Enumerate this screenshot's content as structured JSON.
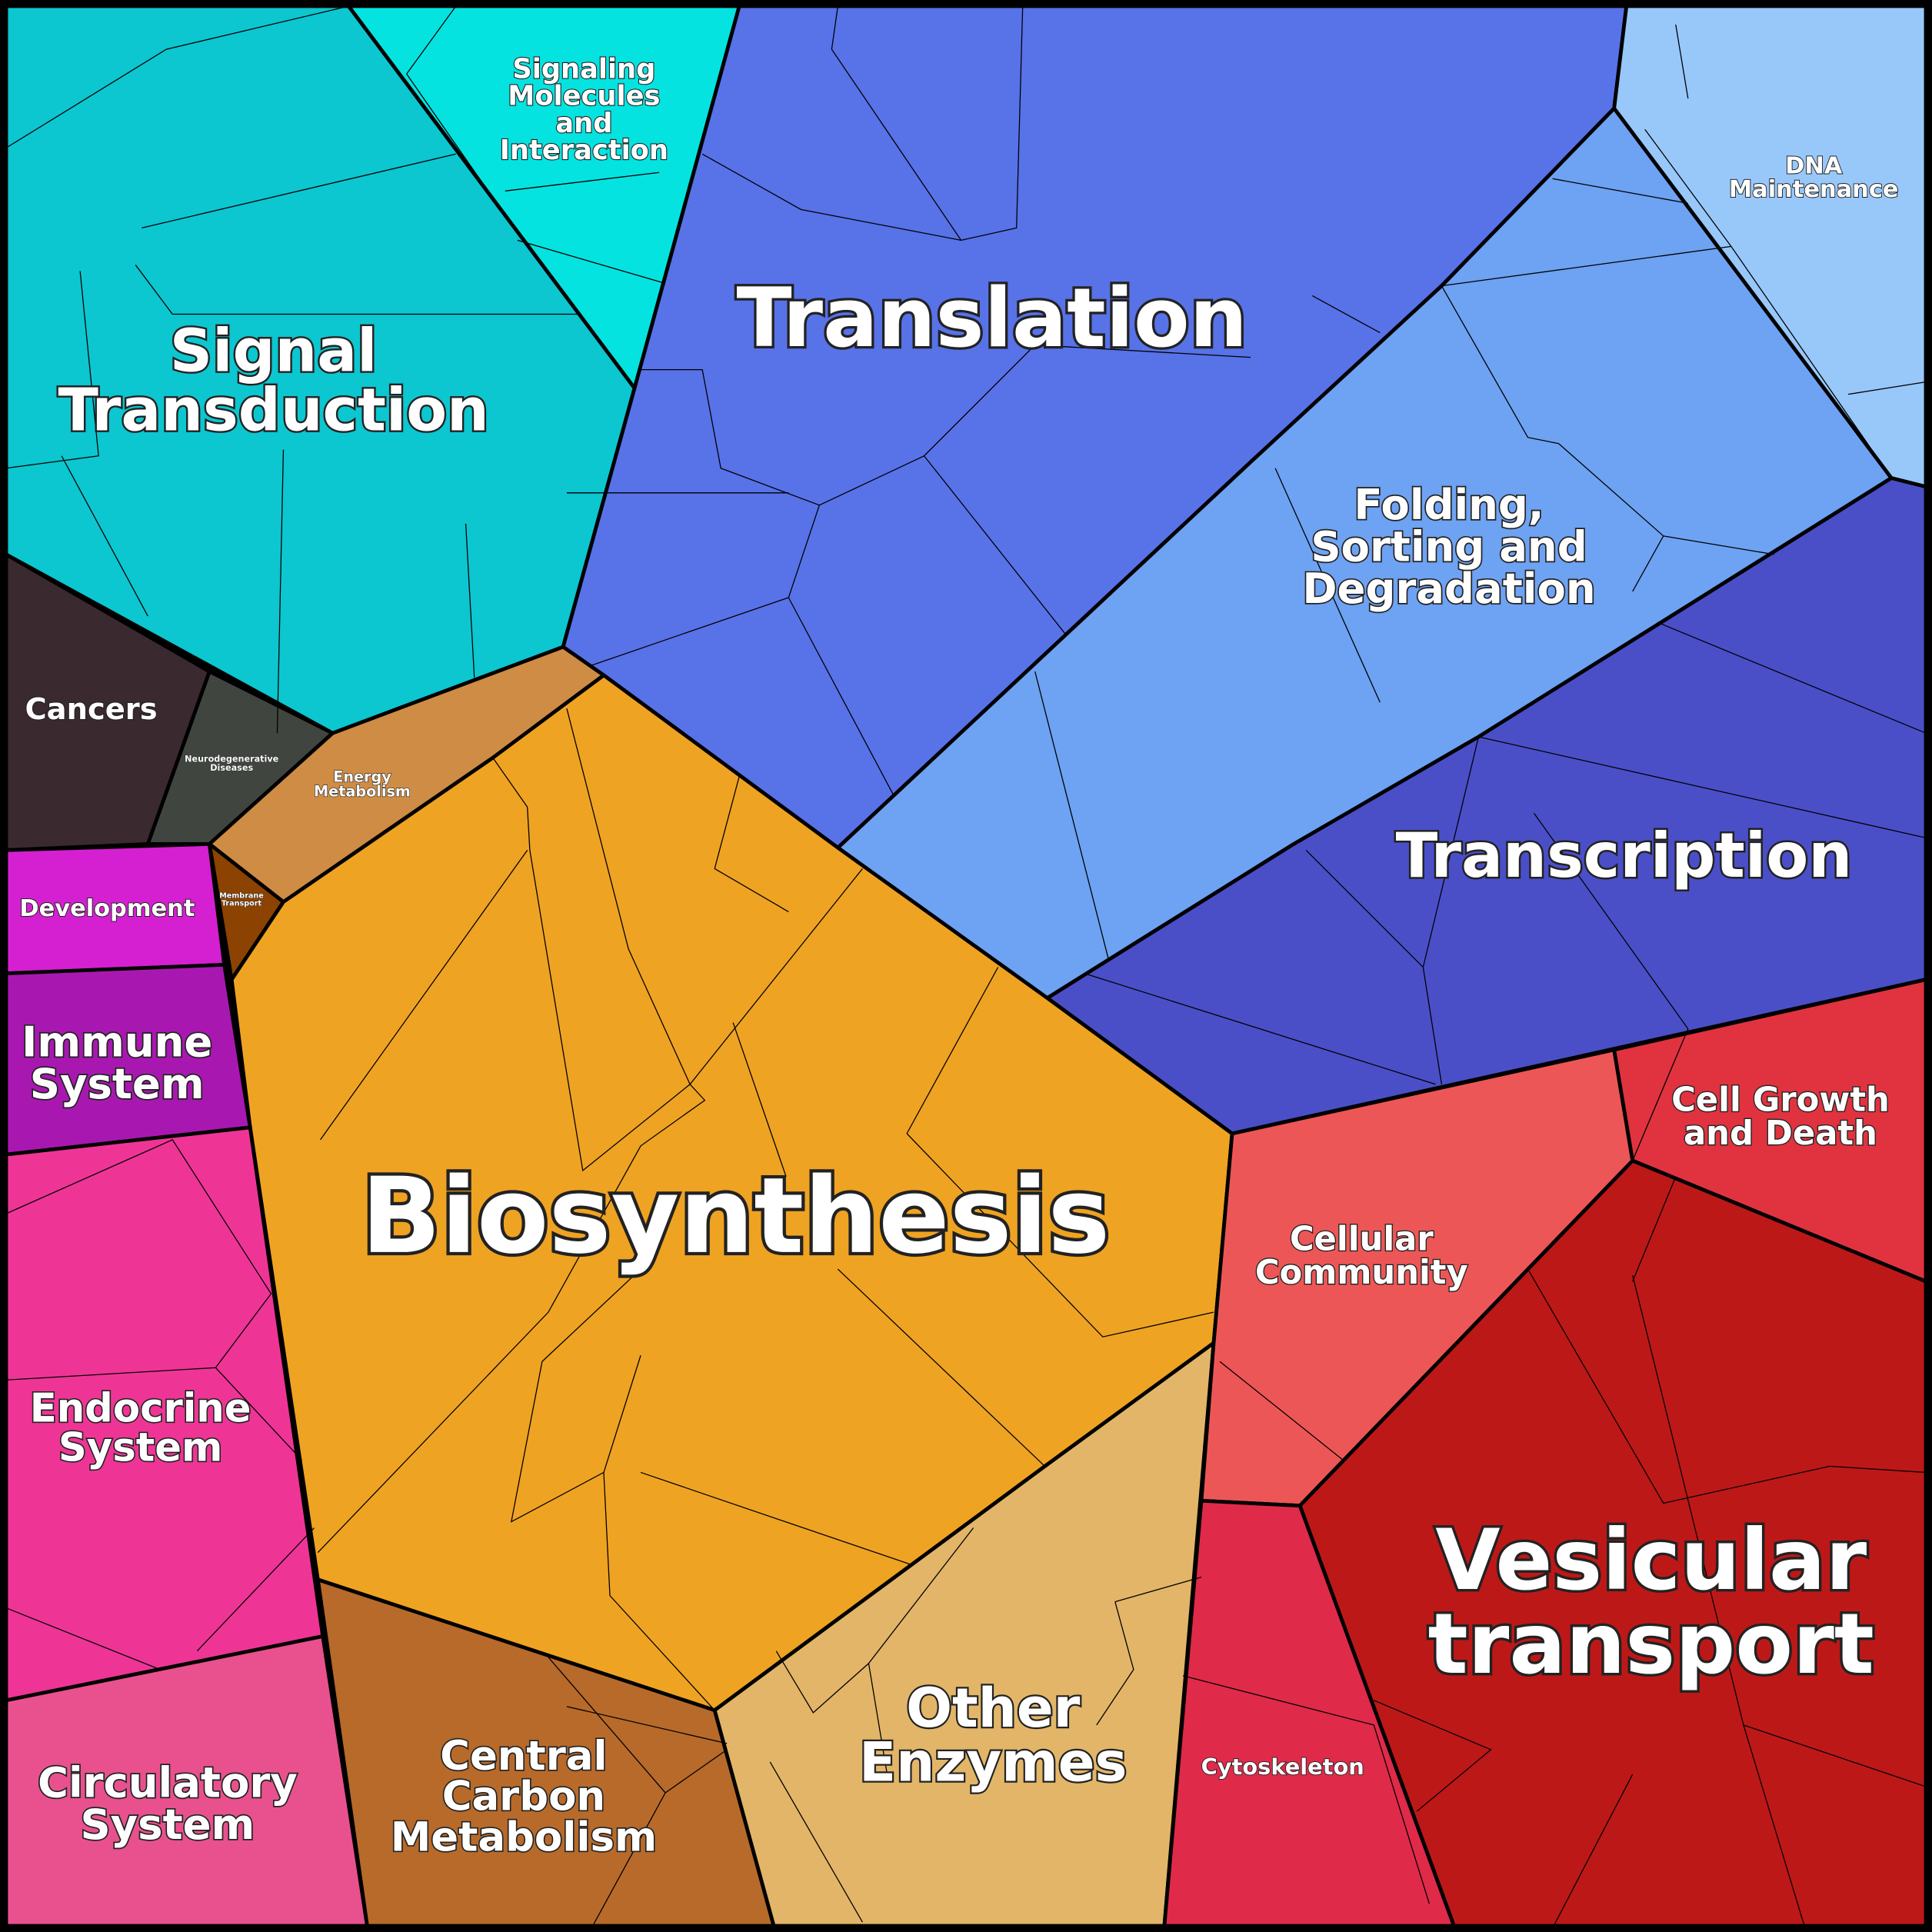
{
  "regions": [
    {
      "label": [
        "Signal",
        "Transduction"
      ]
    },
    {
      "label": [
        "Signaling",
        "Molecules",
        "and",
        "Interaction"
      ]
    },
    {
      "label": [
        "Translation"
      ]
    },
    {
      "label": [
        "DNA",
        "Maintenance"
      ]
    },
    {
      "label": [
        "Folding,",
        "Sorting and",
        "Degradation"
      ]
    },
    {
      "label": [
        "Transcription"
      ]
    },
    {
      "label": [
        "Cancers"
      ]
    },
    {
      "label": [
        "Neurodegenerative",
        "Diseases"
      ]
    },
    {
      "label": [
        "Energy",
        "Metabolism"
      ]
    },
    {
      "label": [
        "Membrane",
        "Transport"
      ]
    },
    {
      "label": [
        "Biosynthesis"
      ]
    },
    {
      "label": [
        "Development"
      ]
    },
    {
      "label": [
        "Immune",
        "System"
      ]
    },
    {
      "label": [
        "Endocrine",
        "System"
      ]
    },
    {
      "label": [
        "Circulatory",
        "System"
      ]
    },
    {
      "label": [
        "Central",
        "Carbon",
        "Metabolism"
      ]
    },
    {
      "label": [
        "Other",
        "Enzymes"
      ]
    },
    {
      "label": [
        "Cellular",
        "Community"
      ]
    },
    {
      "label": [
        "Cell Growth",
        "and Death"
      ]
    },
    {
      "label": [
        "Vesicular",
        "transport"
      ]
    },
    {
      "label": [
        "Cytoskeleton"
      ]
    }
  ]
}
